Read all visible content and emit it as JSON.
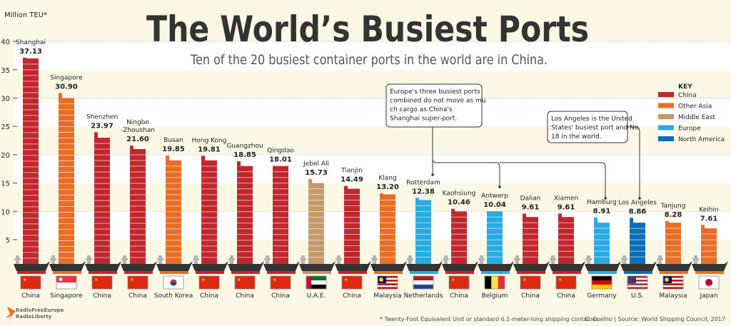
{
  "title": "The World’s Busiest Ports",
  "subtitle": "Ten of the 20 busiest container ports in the world are in China.",
  "chart_data": {
    "type": "bar",
    "ylabel": "Million TEU*",
    "ylim": [
      0,
      40
    ],
    "yticks": [
      5,
      10,
      15,
      20,
      25,
      30,
      35,
      40
    ],
    "categories": [
      "Shanghai",
      "Singapore",
      "Shenzhen",
      "Ningbo -Zhoushan",
      "Busan",
      "Hong Kong",
      "Guangzhou",
      "Qingdao",
      "Jebel Ali",
      "Tianjin",
      "Klang",
      "Rotterdam",
      "Kaohsiung",
      "Antwerp",
      "Dalian",
      "Xiamen",
      "Hamburg",
      "Los Angeles",
      "Tanjung",
      "Keihin"
    ],
    "values": [
      37.13,
      30.9,
      23.97,
      21.6,
      19.85,
      19.81,
      18.85,
      18.01,
      15.73,
      14.49,
      13.2,
      12.38,
      10.46,
      10.04,
      9.61,
      9.61,
      8.91,
      8.86,
      8.28,
      7.61
    ],
    "value_labels": [
      "37.13",
      "30.90",
      "23.97",
      "21.60",
      "19.85",
      "19.81",
      "18.85",
      "18.01",
      "15.73",
      "14.49",
      "13.20",
      "12.38",
      "10.46",
      "10.04",
      "9.61",
      "9.61",
      "8.91",
      "8.86",
      "8.28",
      "7.61"
    ],
    "countries": [
      "China",
      "Singapore",
      "China",
      "China",
      "South Korea",
      "China",
      "China",
      "China",
      "U.A.E.",
      "China",
      "Malaysia",
      "Netherlands",
      "China",
      "Belgium",
      "China",
      "China",
      "Germany",
      "U.S.",
      "Malaysia",
      "Japan"
    ],
    "regions": [
      "China",
      "Other Asia",
      "China",
      "China",
      "Other Asia",
      "China",
      "China",
      "China",
      "Middle East",
      "China",
      "Other Asia",
      "Europe",
      "China",
      "Europe",
      "China",
      "China",
      "Europe",
      "North America",
      "Other Asia",
      "Other Asia"
    ],
    "legend": {
      "title": "KEY",
      "placement": "right",
      "entries": [
        {
          "name": "China",
          "color": "#c1272d"
        },
        {
          "name": "Other Asia",
          "color": "#e86d25"
        },
        {
          "name": "Middle East",
          "color": "#c49a6c"
        },
        {
          "name": "Europe",
          "color": "#29abe2"
        },
        {
          "name": "North America",
          "color": "#0a6fb8"
        }
      ]
    },
    "annotations": [
      "Europe's three busiest ports combined do not move as much cargo as China's Shanghai super-port.",
      "Los Angeles is the United States' busiest port and No.18 in the world."
    ]
  },
  "footnote": "* Twenty-Foot Equivalent Unit or standard 6.1-meter-long shipping container.",
  "credit": "C. Coelho | Source: World Shipping Council, 2017",
  "logo": "RadioFreeEurope RadioLiberty"
}
